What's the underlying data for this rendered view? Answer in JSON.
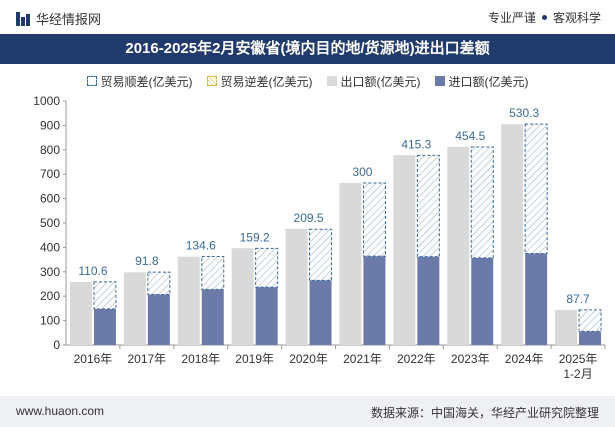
{
  "header": {
    "brand": "华经情报网",
    "slogan_left": "专业严谨",
    "slogan_right": "客观科学"
  },
  "chart_data": {
    "type": "bar",
    "title": "2016-2025年2月安徽省(境内目的地/货源地)进出口差额",
    "categories": [
      "2016年",
      "2017年",
      "2018年",
      "2019年",
      "2020年",
      "2021年",
      "2022年",
      "2023年",
      "2024年",
      "2025年\n1-2月"
    ],
    "series": [
      {
        "name": "贸易顺差(亿美元)",
        "values": [
          110.6,
          91.8,
          134.6,
          159.2,
          209.5,
          300,
          415.3,
          454.5,
          530.3,
          87.7
        ]
      },
      {
        "name": "贸易逆差(亿美元)",
        "values": [
          0,
          0,
          0,
          0,
          0,
          0,
          0,
          0,
          0,
          0
        ]
      },
      {
        "name": "出口额(亿美元)",
        "values": [
          258,
          298,
          362,
          397,
          476,
          664,
          778,
          812,
          905,
          144
        ]
      },
      {
        "name": "进口额(亿美元)",
        "values": [
          148,
          207,
          228,
          237,
          265,
          364,
          362,
          357,
          375,
          56
        ]
      }
    ],
    "data_labels": [
      "110.6",
      "91.8",
      "134.6",
      "159.2",
      "209.5",
      "300",
      "415.3",
      "454.5",
      "530.3",
      "87.7"
    ],
    "yticks": [
      0,
      100,
      200,
      300,
      400,
      500,
      600,
      700,
      800,
      900,
      1000
    ],
    "ylim": [
      0,
      1000
    ],
    "legend_position": "top",
    "grid": false,
    "colors": {
      "export": "#d9d9d9",
      "import": "#6b7aa8",
      "surplus_border": "#3a6a96",
      "label": "#3a6a96"
    }
  },
  "footer": {
    "website": "www.huaon.com",
    "source": "数据来源：中国海关，华经产业研究院整理"
  }
}
